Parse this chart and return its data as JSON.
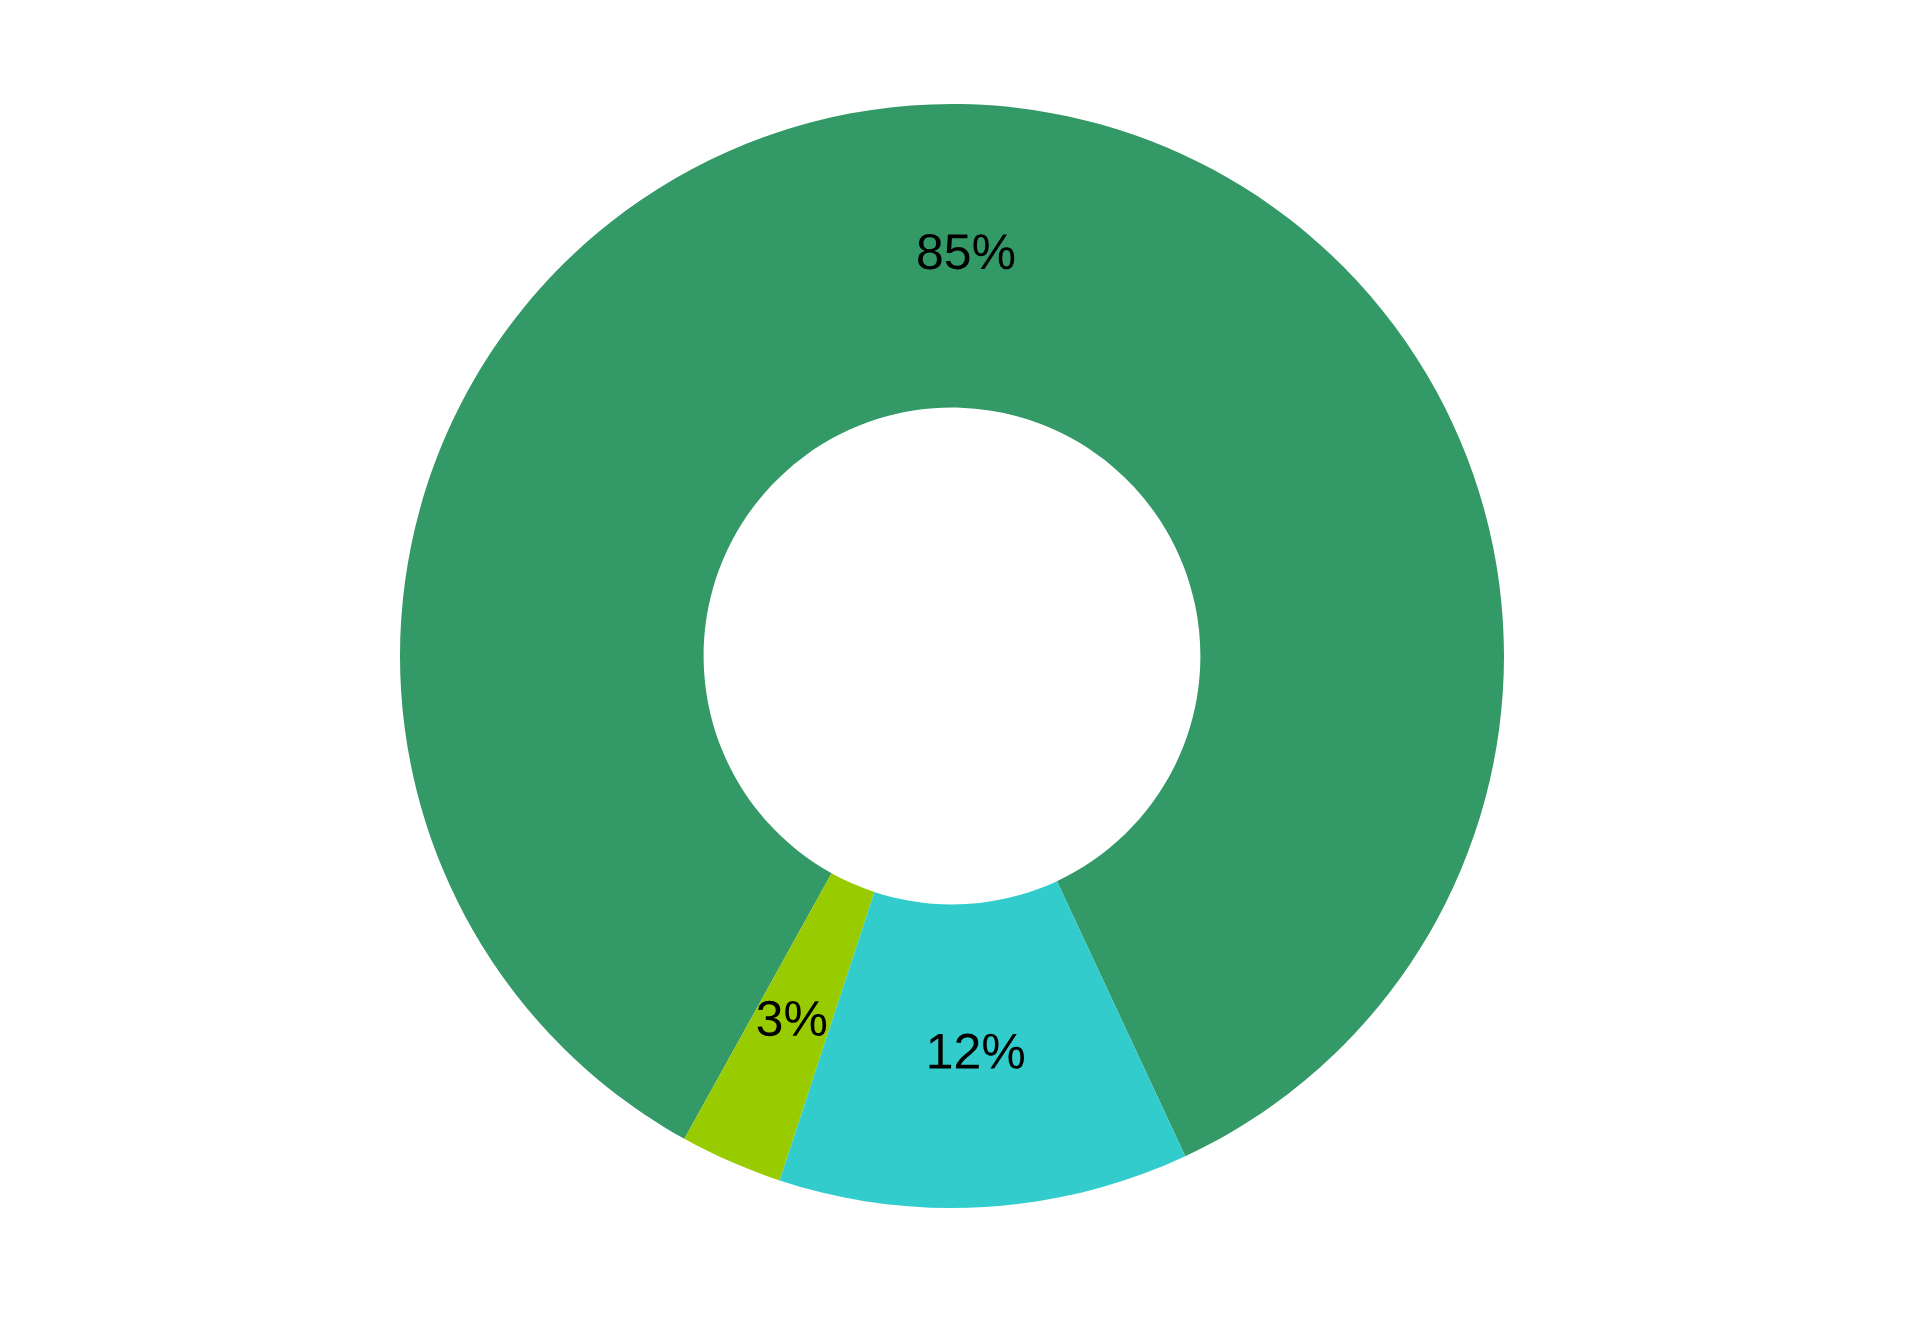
{
  "chart_data": {
    "type": "donut",
    "categories": [
      null,
      null,
      null
    ],
    "values": [
      85,
      3,
      12
    ],
    "colors": [
      "#339966",
      "#99cc00",
      "#33cccc"
    ],
    "value_labels": [
      "85%",
      "3%",
      "12%"
    ]
  }
}
